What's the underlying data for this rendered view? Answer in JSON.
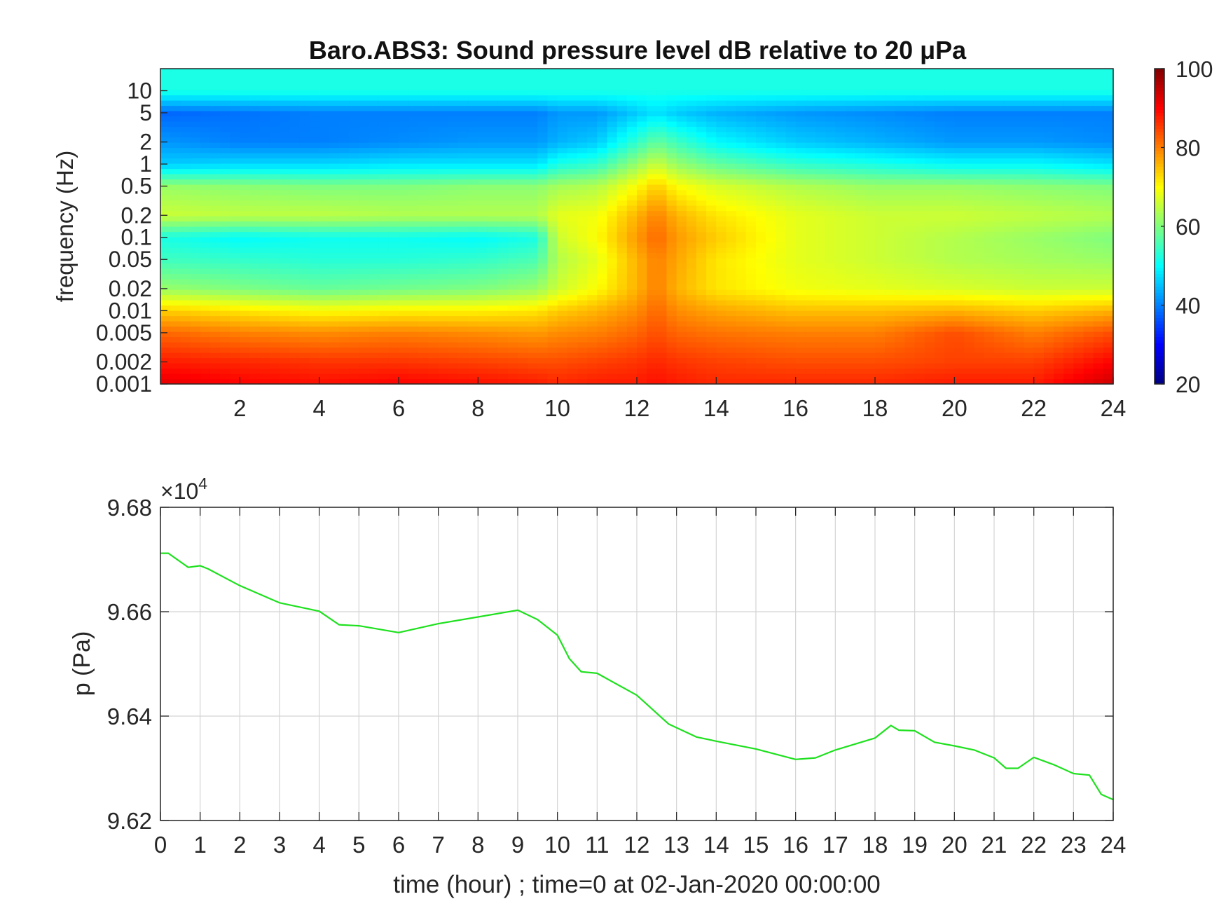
{
  "colors": {
    "line": "#1fe01f",
    "axis": "#262626",
    "grid": "#d4d4d4",
    "colormap": "jet"
  },
  "chart_data": [
    {
      "type": "heatmap",
      "title": "Baro.ABS3: Sound pressure level dB relative to 20 μPa",
      "xlabel": "",
      "ylabel": "frequency (Hz)",
      "y_scale": "log",
      "xlim": [
        0,
        24
      ],
      "ylim": [
        0.001,
        20
      ],
      "x_ticks": [
        "2",
        "4",
        "6",
        "8",
        "10",
        "12",
        "14",
        "16",
        "18",
        "20",
        "22",
        "24"
      ],
      "y_ticks": [
        "0.001",
        "0.002",
        "0.005",
        "0.01",
        "0.02",
        "0.05",
        "0.1",
        "0.2",
        "0.5",
        "1",
        "2",
        "5",
        "10"
      ],
      "colorbar": {
        "range": [
          20,
          100
        ],
        "ticks": [
          "20",
          "40",
          "60",
          "80",
          "100"
        ]
      },
      "bands_hz": [
        0.001,
        0.002,
        0.005,
        0.01,
        0.02,
        0.05,
        0.1,
        0.2,
        0.5,
        1,
        2,
        5,
        10
      ],
      "hours": [
        0,
        2,
        4,
        6,
        8,
        9.5,
        10,
        11,
        12,
        12.5,
        13,
        14,
        16,
        18,
        20,
        22,
        24
      ],
      "z_db": [
        [
          92,
          88,
          82,
          74,
          62,
          55,
          52,
          66,
          62,
          46,
          42,
          38,
          52
        ],
        [
          90,
          87,
          80,
          72,
          60,
          54,
          50,
          65,
          61,
          47,
          40,
          39,
          52
        ],
        [
          89,
          86,
          79,
          70,
          58,
          53,
          51,
          65,
          60,
          47,
          40,
          40,
          52
        ],
        [
          90,
          86,
          80,
          71,
          59,
          53,
          51,
          64,
          60,
          48,
          41,
          40,
          52
        ],
        [
          89,
          85,
          79,
          71,
          60,
          54,
          50,
          64,
          61,
          48,
          42,
          40,
          52
        ],
        [
          88,
          84,
          78,
          72,
          62,
          56,
          52,
          64,
          61,
          48,
          42,
          40,
          52
        ],
        [
          87,
          84,
          79,
          74,
          66,
          64,
          66,
          68,
          63,
          52,
          44,
          42,
          52
        ],
        [
          88,
          85,
          80,
          76,
          70,
          68,
          70,
          69,
          64,
          54,
          46,
          42,
          52
        ],
        [
          88,
          86,
          82,
          79,
          76,
          76,
          78,
          76,
          70,
          62,
          54,
          46,
          52
        ],
        [
          89,
          87,
          84,
          82,
          80,
          80,
          82,
          80,
          74,
          66,
          58,
          48,
          52
        ],
        [
          88,
          86,
          82,
          79,
          76,
          77,
          78,
          76,
          70,
          62,
          55,
          46,
          52
        ],
        [
          87,
          85,
          81,
          77,
          72,
          72,
          74,
          72,
          67,
          58,
          50,
          44,
          52
        ],
        [
          87,
          84,
          80,
          75,
          69,
          68,
          68,
          68,
          64,
          54,
          46,
          42,
          52
        ],
        [
          87,
          84,
          80,
          75,
          68,
          66,
          66,
          66,
          62,
          52,
          44,
          41,
          52
        ],
        [
          88,
          85,
          84,
          76,
          67,
          64,
          64,
          66,
          62,
          50,
          42,
          40,
          52
        ],
        [
          88,
          85,
          80,
          74,
          66,
          63,
          62,
          65,
          61,
          50,
          42,
          40,
          52
        ],
        [
          94,
          90,
          84,
          76,
          66,
          62,
          60,
          64,
          60,
          48,
          41,
          40,
          52
        ]
      ]
    },
    {
      "type": "line",
      "title": "",
      "xlabel": "time (hour) ; time=0 at 02-Jan-2020 00:00:00",
      "ylabel": "p (Pa)",
      "exponent_label": "×10",
      "exponent_power": "4",
      "xlim": [
        0,
        24
      ],
      "ylim": [
        96200,
        96800
      ],
      "grid": true,
      "x_ticks": [
        "0",
        "1",
        "2",
        "3",
        "4",
        "5",
        "6",
        "7",
        "8",
        "9",
        "10",
        "11",
        "12",
        "13",
        "14",
        "15",
        "16",
        "17",
        "18",
        "19",
        "20",
        "21",
        "22",
        "23",
        "24"
      ],
      "y_ticks": [
        "9.62",
        "9.64",
        "9.66",
        "9.68"
      ],
      "series": [
        {
          "x": [
            0,
            0.2,
            0.7,
            1.0,
            1.2,
            2,
            3,
            4,
            4.5,
            5.0,
            6,
            7,
            8,
            9,
            9.5,
            10.0,
            10.3,
            10.6,
            11,
            12,
            12.8,
            13.5,
            14,
            15,
            16,
            16.5,
            17,
            18.0,
            18.4,
            18.6,
            19,
            19.5,
            20,
            20.5,
            21,
            21.3,
            21.6,
            22,
            22.5,
            23,
            23.4,
            23.7,
            24
          ],
          "y": [
            96712,
            96712,
            96685,
            96688,
            96682,
            96650,
            96617,
            96601,
            96575,
            96573,
            96560,
            96577,
            96590,
            96603,
            96585,
            96555,
            96510,
            96485,
            96482,
            96440,
            96385,
            96360,
            96352,
            96337,
            96317,
            96320,
            96335,
            96358,
            96382,
            96373,
            96372,
            96350,
            96343,
            96335,
            96320,
            96300,
            96300,
            96321,
            96307,
            96290,
            96287,
            96250,
            96240
          ]
        }
      ]
    }
  ]
}
